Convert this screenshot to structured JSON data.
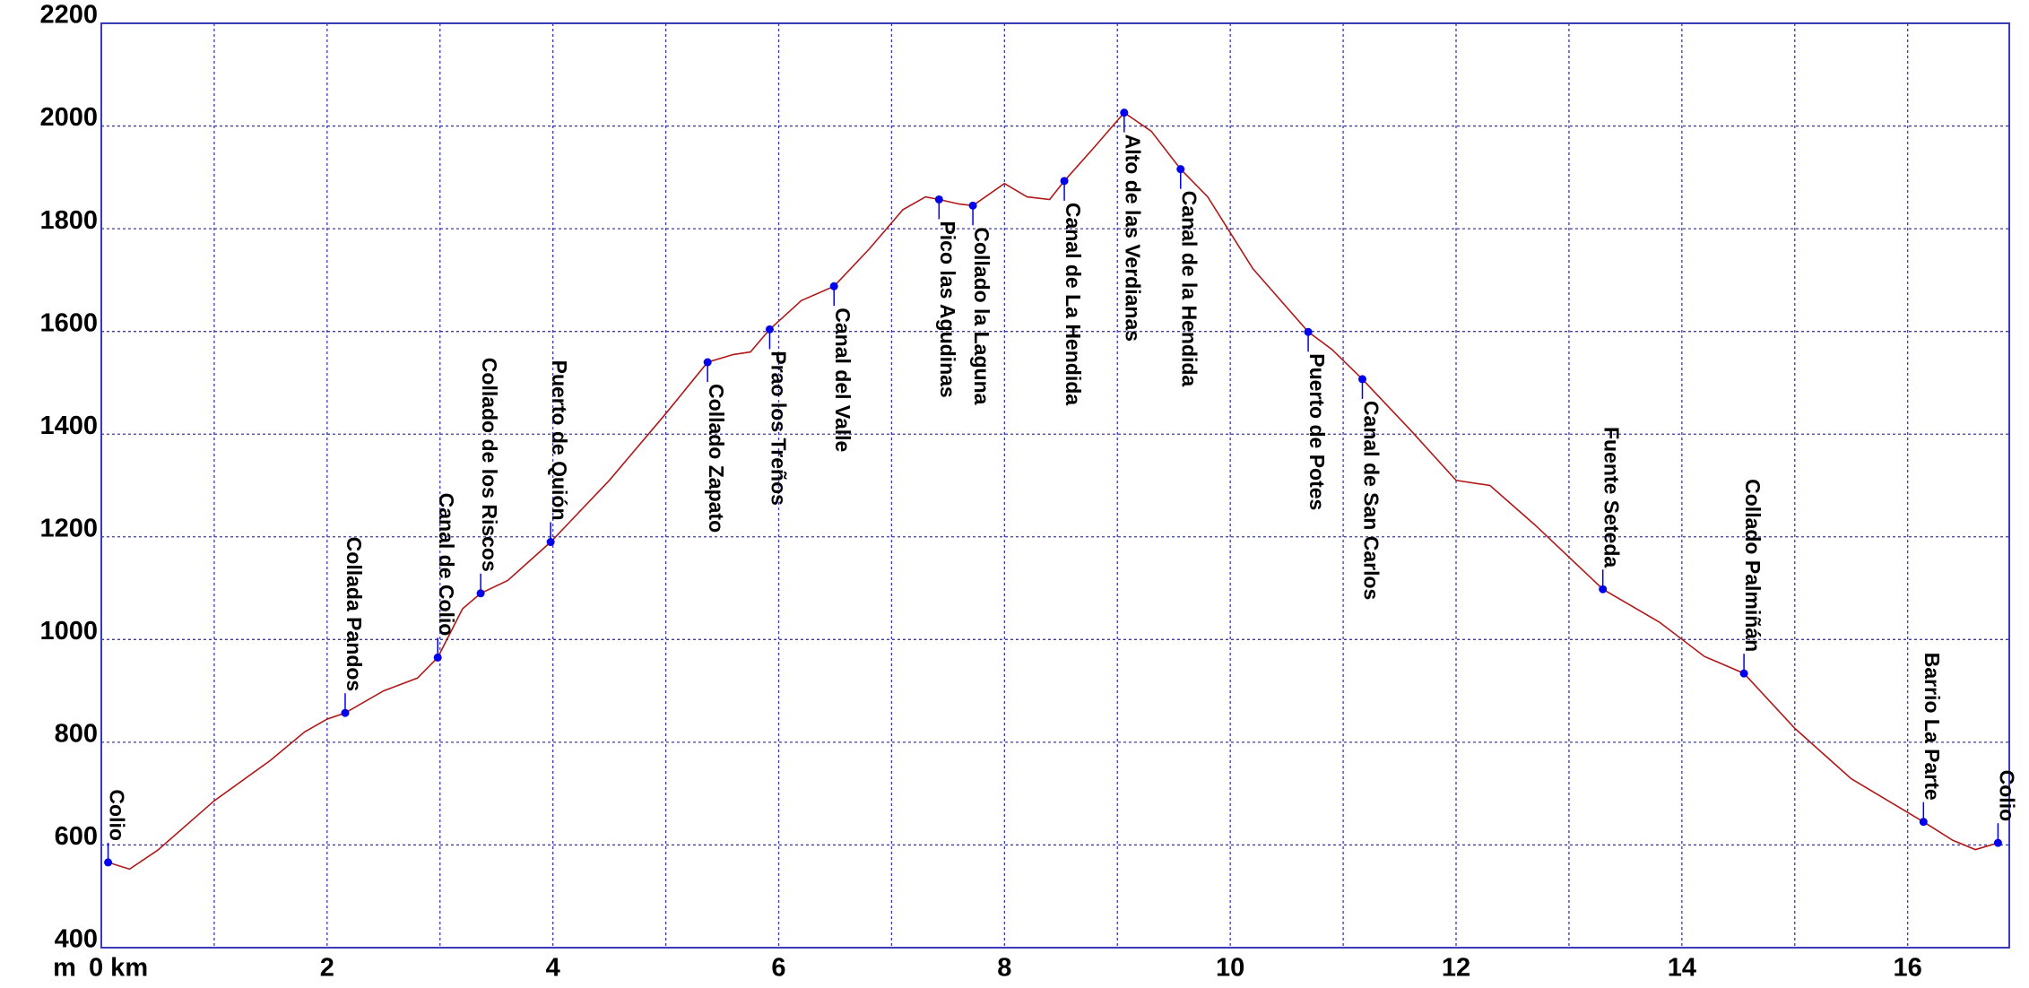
{
  "chart_data": {
    "type": "line",
    "y_unit": "m",
    "xlim": [
      0,
      16.9
    ],
    "ylim": [
      400,
      2200
    ],
    "xticks": [
      {
        "value": 0,
        "label": "0 km"
      },
      2,
      4,
      6,
      8,
      10,
      12,
      14,
      16
    ],
    "xgrid": [
      1,
      2,
      3,
      4,
      5,
      6,
      7,
      8,
      9,
      10,
      11,
      12,
      13,
      14,
      15,
      16
    ],
    "yticks": [
      400,
      600,
      800,
      1000,
      1200,
      1400,
      1600,
      1800,
      2000,
      2200
    ],
    "grid": true,
    "line_color": "#b01818",
    "point_color": "#0000ee",
    "grid_color": "#3a3ab8",
    "x": [
      0.06,
      0.25,
      0.5,
      1.0,
      1.5,
      1.8,
      2.0,
      2.16,
      2.5,
      2.8,
      2.98,
      3.2,
      3.36,
      3.6,
      3.98,
      4.5,
      5.0,
      5.37,
      5.6,
      5.75,
      5.92,
      6.2,
      6.49,
      6.8,
      7.1,
      7.3,
      7.42,
      7.6,
      7.72,
      8.0,
      8.2,
      8.4,
      8.53,
      8.8,
      9.06,
      9.3,
      9.56,
      9.8,
      10.2,
      10.69,
      10.9,
      11.17,
      11.6,
      12.0,
      12.3,
      12.7,
      13.3,
      13.8,
      14.2,
      14.55,
      15.0,
      15.5,
      16.14,
      16.4,
      16.6,
      16.8
    ],
    "values": [
      566,
      553,
      590,
      686,
      765,
      820,
      845,
      857,
      900,
      925,
      965,
      1060,
      1090,
      1115,
      1190,
      1310,
      1440,
      1540,
      1555,
      1560,
      1604,
      1660,
      1688,
      1760,
      1837,
      1862,
      1857,
      1848,
      1845,
      1888,
      1862,
      1857,
      1893,
      1960,
      2026,
      1990,
      1916,
      1862,
      1722,
      1599,
      1565,
      1507,
      1407,
      1310,
      1300,
      1223,
      1098,
      1034,
      967,
      934,
      827,
      729,
      645,
      609,
      591,
      604
    ],
    "waypoints": [
      {
        "label": "Colio",
        "x": 0.06,
        "y": 566
      },
      {
        "label": "Collada Pandos",
        "x": 2.16,
        "y": 857
      },
      {
        "label": "Canal de Colio",
        "x": 2.98,
        "y": 965
      },
      {
        "label": "Collado de los Riscos",
        "x": 3.36,
        "y": 1090
      },
      {
        "label": "Puerto de Quión",
        "x": 3.98,
        "y": 1190
      },
      {
        "label": "Collado Zapato",
        "x": 5.37,
        "y": 1540
      },
      {
        "label": "Prao los Treños",
        "x": 5.92,
        "y": 1604
      },
      {
        "label": "Canal del Valle",
        "x": 6.49,
        "y": 1688
      },
      {
        "label": "Pico las Agudinas",
        "x": 7.42,
        "y": 1857
      },
      {
        "label": "Collado la Laguna",
        "x": 7.72,
        "y": 1845
      },
      {
        "label": "Canal de La Hendida",
        "x": 8.53,
        "y": 1893
      },
      {
        "label": "Alto de las Verdianas",
        "x": 9.06,
        "y": 2026
      },
      {
        "label": "Canal de la Hendida",
        "x": 9.56,
        "y": 1916
      },
      {
        "label": "Puerto de Potes",
        "x": 10.69,
        "y": 1599
      },
      {
        "label": "Canal de San Carlos",
        "x": 11.17,
        "y": 1507
      },
      {
        "label": "Fuente Seteda",
        "x": 13.3,
        "y": 1098
      },
      {
        "label": "Collado Palmiñán",
        "x": 14.55,
        "y": 934
      },
      {
        "label": "Barrio La Parte",
        "x": 16.14,
        "y": 645
      },
      {
        "label": "Colio",
        "x": 16.8,
        "y": 604
      }
    ]
  }
}
